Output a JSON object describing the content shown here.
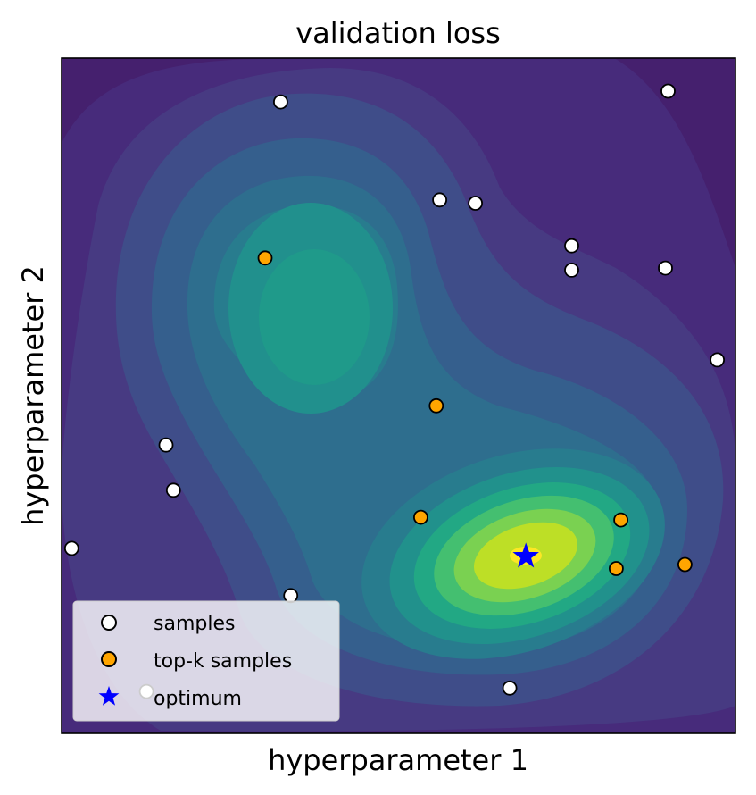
{
  "chart_data": {
    "type": "scatter",
    "title": "validation loss",
    "xlabel": "hyperparameter 1",
    "ylabel": "hyperparameter 2",
    "xlim": [
      0,
      1
    ],
    "ylim": [
      0,
      1
    ],
    "xticks": [],
    "yticks": [],
    "grid": false,
    "legend_position": "lower-left",
    "background": "filled contour of validation loss (viridis), lowest region near the optimum, second basin upper-left",
    "colors": {
      "samples_face": "#ffffff",
      "top_k_face": "#ffa500",
      "optimum": "#0000ff",
      "marker_edge": "#000000"
    },
    "series": [
      {
        "name": "samples",
        "marker": "circle",
        "points": [
          {
            "x": 0.325,
            "y": 0.935
          },
          {
            "x": 0.9,
            "y": 0.951
          },
          {
            "x": 0.561,
            "y": 0.79
          },
          {
            "x": 0.614,
            "y": 0.785
          },
          {
            "x": 0.757,
            "y": 0.722
          },
          {
            "x": 0.757,
            "y": 0.686
          },
          {
            "x": 0.896,
            "y": 0.689
          },
          {
            "x": 0.973,
            "y": 0.553
          },
          {
            "x": 0.155,
            "y": 0.427
          },
          {
            "x": 0.166,
            "y": 0.36
          },
          {
            "x": 0.015,
            "y": 0.274
          },
          {
            "x": 0.34,
            "y": 0.204
          },
          {
            "x": 0.665,
            "y": 0.067
          },
          {
            "x": 0.126,
            "y": 0.062
          }
        ]
      },
      {
        "name": "top-k samples",
        "marker": "circle",
        "points": [
          {
            "x": 0.302,
            "y": 0.704
          },
          {
            "x": 0.556,
            "y": 0.485
          },
          {
            "x": 0.533,
            "y": 0.32
          },
          {
            "x": 0.83,
            "y": 0.316
          },
          {
            "x": 0.823,
            "y": 0.244
          },
          {
            "x": 0.925,
            "y": 0.25
          }
        ]
      },
      {
        "name": "optimum",
        "marker": "star",
        "points": [
          {
            "x": 0.689,
            "y": 0.262
          }
        ]
      }
    ]
  }
}
